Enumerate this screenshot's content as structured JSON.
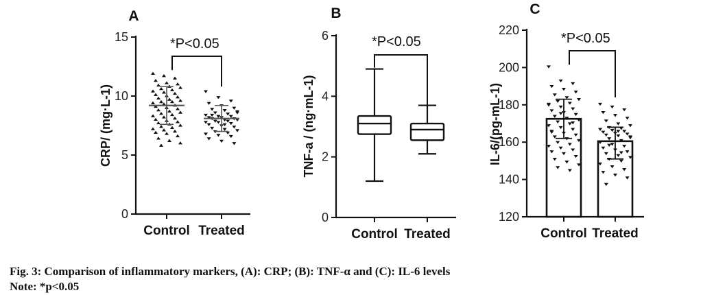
{
  "caption": {
    "line1": "Fig. 3: Comparison of inflammatory markers, (A): CRP; (B): TNF-α and (C): IL-6 levels",
    "line2": "Note: *p<0.05"
  },
  "chart_data": [
    {
      "type": "scatter",
      "panel": "A",
      "ylabel": "CRP/ (mg·L-1)",
      "categories": [
        "Control",
        "Treated"
      ],
      "ylim": [
        0,
        15
      ],
      "yticks": [
        0,
        5,
        10,
        15
      ],
      "significance": "*P<0.05",
      "markers": [
        "triangle-up",
        "triangle-down"
      ],
      "summary": [
        {
          "name": "Control",
          "mean": 9.2,
          "sd_low": 7.6,
          "sd_high": 10.8
        },
        {
          "name": "Treated",
          "mean": 8.1,
          "sd_low": 7.0,
          "sd_high": 9.2
        }
      ],
      "points": [
        [
          11.9,
          11.7,
          11.5,
          11.3,
          11.1,
          11.0,
          10.9,
          10.8,
          10.7,
          10.6,
          10.5,
          10.4,
          10.3,
          10.2,
          10.1,
          10.0,
          9.9,
          9.8,
          9.7,
          9.6,
          9.5,
          9.5,
          9.4,
          9.3,
          9.2,
          9.1,
          9.0,
          8.9,
          8.8,
          8.7,
          8.6,
          8.5,
          8.4,
          8.3,
          8.2,
          8.1,
          8.0,
          7.9,
          7.8,
          7.7,
          7.6,
          7.5,
          7.4,
          7.3,
          7.2,
          7.1,
          7.0,
          6.9,
          6.8,
          6.6,
          6.4,
          6.2,
          6.0,
          5.8
        ],
        [
          10.4,
          9.9,
          9.6,
          9.4,
          9.2,
          9.0,
          8.9,
          8.8,
          8.7,
          8.6,
          8.5,
          8.4,
          8.3,
          8.3,
          8.2,
          8.2,
          8.1,
          8.1,
          8.0,
          8.0,
          7.9,
          7.9,
          7.8,
          7.8,
          7.7,
          7.6,
          7.5,
          7.4,
          7.3,
          7.2,
          7.1,
          7.0,
          6.9,
          6.8,
          6.7,
          6.6,
          6.4,
          6.2,
          6.0,
          8.4,
          7.6,
          8.6
        ]
      ]
    },
    {
      "type": "box",
      "panel": "B",
      "ylabel": "TNF-a / (ng·mL-1)",
      "categories": [
        "Control",
        "Treated"
      ],
      "ylim": [
        0,
        6
      ],
      "yticks": [
        0,
        2,
        4,
        6
      ],
      "significance": "*P<0.05",
      "boxes": [
        {
          "name": "Control",
          "min": 1.2,
          "q1": 2.75,
          "median": 3.1,
          "q3": 3.35,
          "max": 4.9
        },
        {
          "name": "Treated",
          "min": 2.1,
          "q1": 2.55,
          "median": 2.9,
          "q3": 3.1,
          "max": 3.7
        }
      ]
    },
    {
      "type": "bar",
      "panel": "C",
      "ylabel": "IL-6/(pg-mL-1)",
      "categories": [
        "Control",
        "Treated"
      ],
      "values": [
        172.5,
        160.5
      ],
      "ylim": [
        120,
        220
      ],
      "yticks": [
        120,
        140,
        160,
        180,
        200,
        220
      ],
      "significance": "*P<0.05",
      "markers": [
        "triangle-down",
        "triangle-down"
      ],
      "errors": [
        {
          "name": "Control",
          "low": 162.0,
          "high": 183.0
        },
        {
          "name": "Treated",
          "low": 151.0,
          "high": 168.0
        }
      ],
      "points": [
        [
          200.5,
          193.0,
          191.5,
          190.0,
          188.5,
          187.0,
          185.5,
          184.0,
          183.0,
          182.0,
          181.0,
          180.0,
          179.0,
          178.0,
          177.0,
          176.0,
          175.0,
          174.0,
          173.0,
          172.0,
          171.0,
          170.0,
          169.0,
          168.0,
          167.0,
          166.0,
          165.0,
          164.0,
          163.0,
          162.0,
          161.0,
          160.0,
          159.0,
          158.0,
          157.0,
          156.0,
          155.0,
          154.0,
          152.5,
          151.0,
          149.5,
          148.0,
          146.5,
          145.0,
          180.5,
          175.5,
          170.5,
          165.5
        ],
        [
          180.5,
          179.0,
          177.5,
          176.0,
          174.5,
          173.0,
          171.5,
          170.0,
          169.0,
          168.0,
          167.5,
          167.0,
          166.5,
          166.0,
          165.5,
          165.0,
          164.5,
          164.0,
          163.5,
          163.0,
          162.0,
          161.0,
          160.0,
          159.0,
          158.0,
          157.0,
          156.0,
          155.0,
          154.0,
          153.0,
          152.0,
          151.0,
          150.0,
          148.5,
          147.0,
          145.5,
          144.0,
          142.5,
          141.0,
          137.5,
          166.0,
          162.5,
          158.5,
          154.5
        ]
      ]
    }
  ]
}
